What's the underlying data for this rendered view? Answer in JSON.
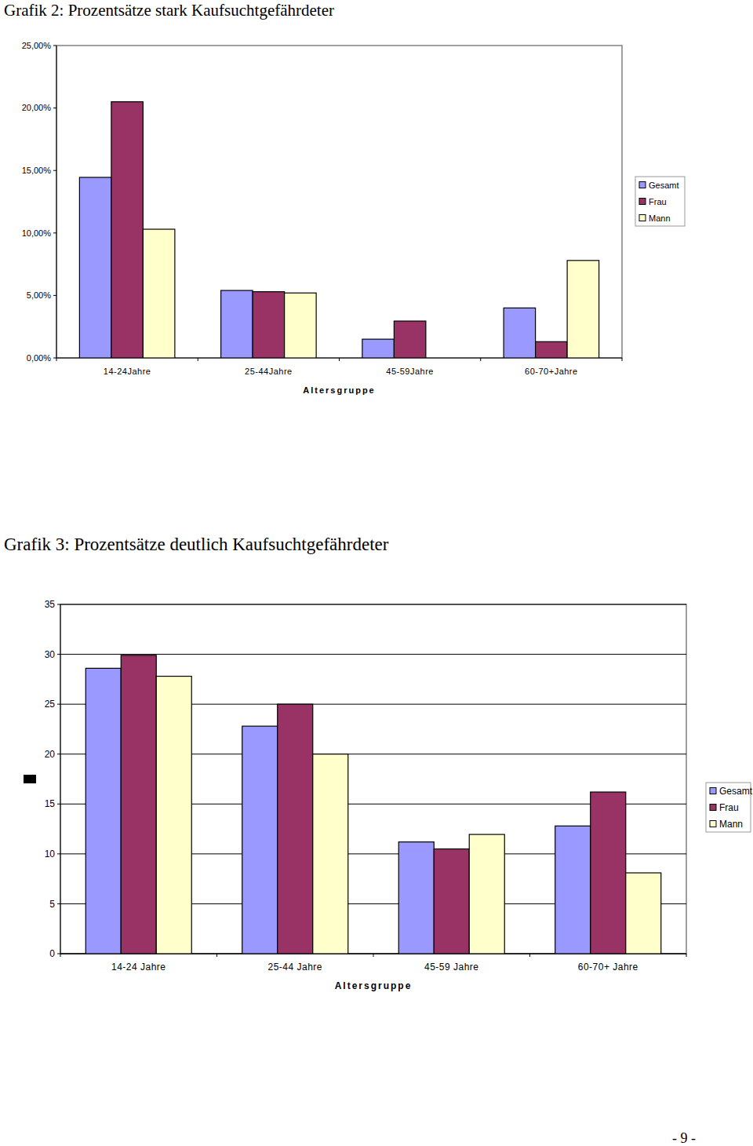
{
  "chart_data": [
    {
      "type": "bar",
      "title": "Grafik 2: Prozentsätze stark Kaufsuchtgefährdeter",
      "x_label": "Altersgruppe",
      "categories": [
        "14-24Jahre",
        "25-44Jahre",
        "45-59Jahre",
        "60-70+Jahre"
      ],
      "series": [
        {
          "name": "Gesamt",
          "color": "#9999ff",
          "values": [
            14.45,
            5.4,
            1.5,
            4.0
          ]
        },
        {
          "name": "Frau",
          "color": "#993366",
          "values": [
            20.5,
            5.3,
            2.95,
            1.3
          ]
        },
        {
          "name": "Mann",
          "color": "#ffffcc",
          "values": [
            10.3,
            5.2,
            0,
            7.8
          ]
        }
      ],
      "ylim": [
        0,
        25
      ],
      "yticks": [
        {
          "value": 0,
          "label": "0,00%"
        },
        {
          "value": 5,
          "label": "5,00%"
        },
        {
          "value": 10,
          "label": "10,00%"
        },
        {
          "value": 15,
          "label": "15,00%"
        },
        {
          "value": 20,
          "label": "20,00%"
        },
        {
          "value": 25,
          "label": "25,00%"
        }
      ],
      "grid": false,
      "legend": "right"
    },
    {
      "type": "bar",
      "title": "Grafik 3: Prozentsätze deutlich Kaufsuchtgefährdeter",
      "x_label": "Altersgruppe",
      "categories": [
        "14-24 Jahre",
        "25-44 Jahre",
        "45-59 Jahre",
        "60-70+ Jahre"
      ],
      "series": [
        {
          "name": "Gesamt",
          "color": "#9999ff",
          "values": [
            28.6,
            22.8,
            11.2,
            12.8
          ]
        },
        {
          "name": "Frau",
          "color": "#993366",
          "values": [
            29.9,
            25.0,
            10.5,
            16.2
          ]
        },
        {
          "name": "Mann",
          "color": "#ffffcc",
          "values": [
            27.8,
            20.0,
            11.95,
            8.1
          ]
        }
      ],
      "ylim": [
        0,
        35
      ],
      "yticks": [
        0,
        5,
        10,
        15,
        20,
        25,
        30,
        35
      ],
      "grid": true,
      "legend": "right"
    }
  ],
  "page": {
    "number": "- 9 -"
  }
}
